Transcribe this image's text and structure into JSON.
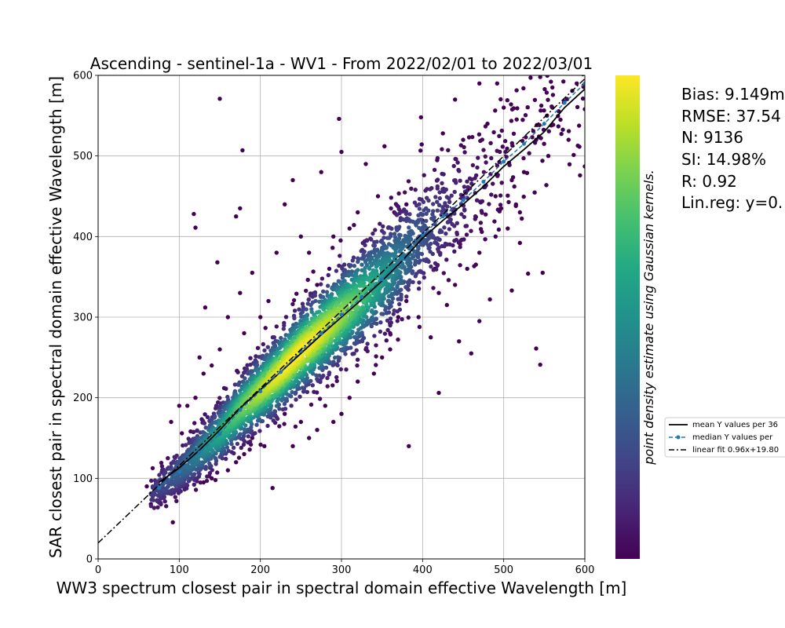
{
  "chart_data": {
    "type": "scatter",
    "title": "Ascending - sentinel-1a - WV1 - From 2022/02/01 to 2022/03/01",
    "xlabel": "WW3 spectrum closest pair in spectral domain effective Wavelength [m]",
    "ylabel": "SAR closest pair in spectral domain effective Wavelength [m]",
    "xlim": [
      0,
      600
    ],
    "ylim": [
      0,
      600
    ],
    "xticks": [
      "0",
      "100",
      "200",
      "300",
      "400",
      "500",
      "600"
    ],
    "yticks": [
      "0",
      "100",
      "200",
      "300",
      "400",
      "500",
      "600"
    ],
    "grid": true,
    "colormap": "viridis",
    "colorbar_label": "point density estimate using Gaussian kernels.",
    "stats": {
      "bias": "Bias: 9.149m",
      "rmse": "RMSE: 37.54",
      "n": "N: 9136",
      "si": "SI: 14.98%",
      "r": "R: 0.92",
      "linreg": "Lin.reg: y=0."
    },
    "legend": {
      "placement": "right, outside plot",
      "entries": [
        "mean Y values per 36",
        "median Y values per",
        "linear fit 0.96x+19.80"
      ]
    },
    "series": [
      {
        "name": "mean Y values per 36",
        "style": "solid",
        "color": "#000000",
        "x": [
          75,
          100,
          125,
          150,
          175,
          200,
          225,
          250,
          275,
          300,
          325,
          350,
          375,
          400,
          425,
          450,
          475,
          500,
          525,
          550,
          575,
          600
        ],
        "y": [
          95,
          113,
          135,
          160,
          187,
          210,
          232,
          255,
          278,
          300,
          322,
          345,
          370,
          398,
          420,
          440,
          462,
          487,
          508,
          530,
          560,
          583
        ]
      },
      {
        "name": "median Y values per",
        "style": "dashed-marker",
        "color": "#1f77b4",
        "x": [
          75,
          100,
          125,
          150,
          175,
          200,
          225,
          250,
          275,
          300,
          325,
          350,
          375,
          400,
          425,
          450,
          475,
          500,
          525,
          550,
          575,
          600
        ],
        "y": [
          88,
          108,
          132,
          155,
          185,
          208,
          232,
          258,
          280,
          303,
          325,
          347,
          372,
          402,
          425,
          445,
          468,
          493,
          515,
          540,
          566,
          590
        ]
      },
      {
        "name": "linear fit 0.96x+19.80",
        "style": "dashdot",
        "color": "#000000",
        "slope": 0.96,
        "intercept": 19.8
      }
    ],
    "outliers": [
      {
        "x": 150,
        "y": 571
      },
      {
        "x": 178,
        "y": 507
      },
      {
        "x": 118,
        "y": 428
      },
      {
        "x": 120,
        "y": 411
      },
      {
        "x": 175,
        "y": 435
      },
      {
        "x": 170,
        "y": 425
      },
      {
        "x": 147,
        "y": 368
      },
      {
        "x": 132,
        "y": 312
      },
      {
        "x": 215,
        "y": 88
      },
      {
        "x": 205,
        "y": 140
      },
      {
        "x": 383,
        "y": 140
      },
      {
        "x": 420,
        "y": 206
      },
      {
        "x": 545,
        "y": 241
      },
      {
        "x": 540,
        "y": 261
      },
      {
        "x": 460,
        "y": 255
      },
      {
        "x": 483,
        "y": 322
      },
      {
        "x": 510,
        "y": 333
      },
      {
        "x": 530,
        "y": 354
      },
      {
        "x": 548,
        "y": 355
      },
      {
        "x": 520,
        "y": 392
      },
      {
        "x": 297,
        "y": 546
      },
      {
        "x": 398,
        "y": 548
      },
      {
        "x": 425,
        "y": 528
      },
      {
        "x": 470,
        "y": 590
      },
      {
        "x": 545,
        "y": 598
      },
      {
        "x": 560,
        "y": 585
      },
      {
        "x": 600,
        "y": 558
      },
      {
        "x": 600,
        "y": 487
      },
      {
        "x": 240,
        "y": 470
      },
      {
        "x": 230,
        "y": 440
      },
      {
        "x": 275,
        "y": 480
      },
      {
        "x": 300,
        "y": 505
      },
      {
        "x": 353,
        "y": 512
      },
      {
        "x": 330,
        "y": 490
      },
      {
        "x": 440,
        "y": 570
      },
      {
        "x": 450,
        "y": 520
      },
      {
        "x": 480,
        "y": 540
      },
      {
        "x": 500,
        "y": 560
      },
      {
        "x": 590,
        "y": 590
      },
      {
        "x": 580,
        "y": 520
      },
      {
        "x": 560,
        "y": 560
      },
      {
        "x": 540,
        "y": 520
      },
      {
        "x": 410,
        "y": 275
      },
      {
        "x": 430,
        "y": 315
      },
      {
        "x": 445,
        "y": 270
      },
      {
        "x": 470,
        "y": 295
      },
      {
        "x": 395,
        "y": 300
      },
      {
        "x": 260,
        "y": 380
      },
      {
        "x": 250,
        "y": 400
      },
      {
        "x": 220,
        "y": 380
      },
      {
        "x": 190,
        "y": 355
      },
      {
        "x": 175,
        "y": 330
      },
      {
        "x": 160,
        "y": 300
      },
      {
        "x": 230,
        "y": 180
      },
      {
        "x": 250,
        "y": 170
      },
      {
        "x": 260,
        "y": 150
      },
      {
        "x": 280,
        "y": 190
      },
      {
        "x": 320,
        "y": 220
      },
      {
        "x": 330,
        "y": 260
      },
      {
        "x": 350,
        "y": 250
      },
      {
        "x": 360,
        "y": 280
      },
      {
        "x": 380,
        "y": 320
      },
      {
        "x": 90,
        "y": 170
      },
      {
        "x": 100,
        "y": 190
      },
      {
        "x": 110,
        "y": 190
      },
      {
        "x": 120,
        "y": 200
      },
      {
        "x": 65,
        "y": 68
      },
      {
        "x": 75,
        "y": 70
      },
      {
        "x": 60,
        "y": 90
      },
      {
        "x": 70,
        "y": 80
      },
      {
        "x": 490,
        "y": 450
      },
      {
        "x": 510,
        "y": 470
      },
      {
        "x": 525,
        "y": 480
      },
      {
        "x": 555,
        "y": 500
      },
      {
        "x": 570,
        "y": 545
      },
      {
        "x": 520,
        "y": 430
      },
      {
        "x": 505,
        "y": 410
      },
      {
        "x": 490,
        "y": 400
      },
      {
        "x": 470,
        "y": 380
      },
      {
        "x": 455,
        "y": 360
      },
      {
        "x": 440,
        "y": 340
      },
      {
        "x": 420,
        "y": 330
      },
      {
        "x": 415,
        "y": 360
      },
      {
        "x": 400,
        "y": 420
      },
      {
        "x": 380,
        "y": 440
      },
      {
        "x": 365,
        "y": 430
      },
      {
        "x": 345,
        "y": 450
      },
      {
        "x": 320,
        "y": 430
      },
      {
        "x": 310,
        "y": 410
      },
      {
        "x": 290,
        "y": 400
      },
      {
        "x": 285,
        "y": 360
      },
      {
        "x": 270,
        "y": 340
      },
      {
        "x": 150,
        "y": 260
      },
      {
        "x": 140,
        "y": 240
      },
      {
        "x": 130,
        "y": 230
      },
      {
        "x": 125,
        "y": 250
      },
      {
        "x": 200,
        "y": 300
      },
      {
        "x": 210,
        "y": 320
      },
      {
        "x": 180,
        "y": 280
      },
      {
        "x": 300,
        "y": 180
      },
      {
        "x": 310,
        "y": 200
      },
      {
        "x": 340,
        "y": 230
      },
      {
        "x": 360,
        "y": 260
      },
      {
        "x": 370,
        "y": 300
      },
      {
        "x": 180,
        "y": 130
      },
      {
        "x": 190,
        "y": 150
      },
      {
        "x": 170,
        "y": 120
      },
      {
        "x": 160,
        "y": 110
      },
      {
        "x": 240,
        "y": 140
      },
      {
        "x": 270,
        "y": 160
      },
      {
        "x": 290,
        "y": 170
      },
      {
        "x": 140,
        "y": 100
      },
      {
        "x": 130,
        "y": 95
      },
      {
        "x": 105,
        "y": 90
      }
    ]
  }
}
